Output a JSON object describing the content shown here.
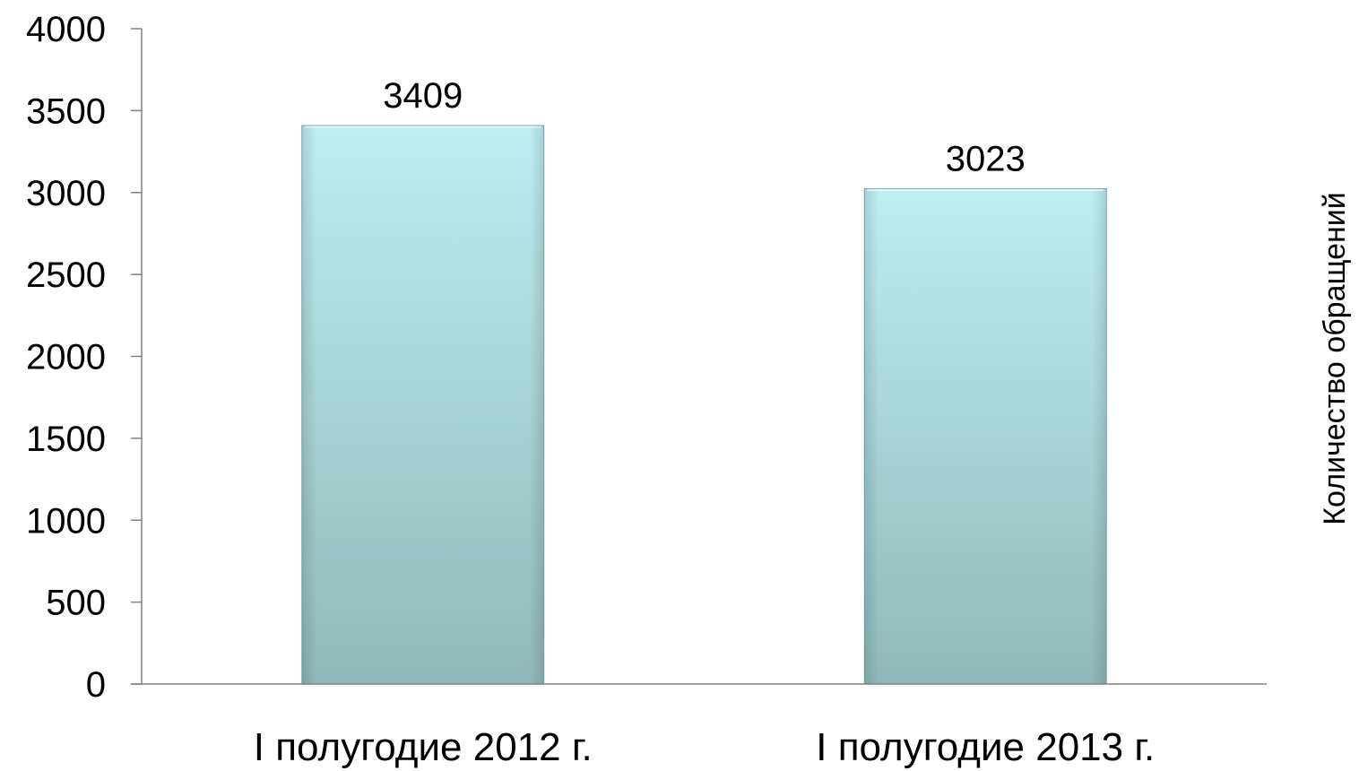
{
  "chart_data": {
    "type": "bar",
    "categories": [
      "I полугодие 2012 г.",
      "I полугодие 2013 г."
    ],
    "values": [
      3409,
      3023
    ],
    "data_labels": [
      "3409",
      "3023"
    ],
    "title": "",
    "xlabel": "",
    "ylabel": "Количество обращений",
    "ylim": [
      0,
      4000
    ],
    "yticks": [
      "0",
      "500",
      "1000",
      "1500",
      "2000",
      "2500",
      "3000",
      "3500",
      "4000"
    ],
    "ylabel_position": "right",
    "grid": false,
    "legend": "none",
    "colors": {
      "bar_top": "#bdeef3",
      "bar_bottom": "#8fb8ba",
      "bar_edge": "#7fa9ab",
      "axis": "#808080"
    }
  }
}
